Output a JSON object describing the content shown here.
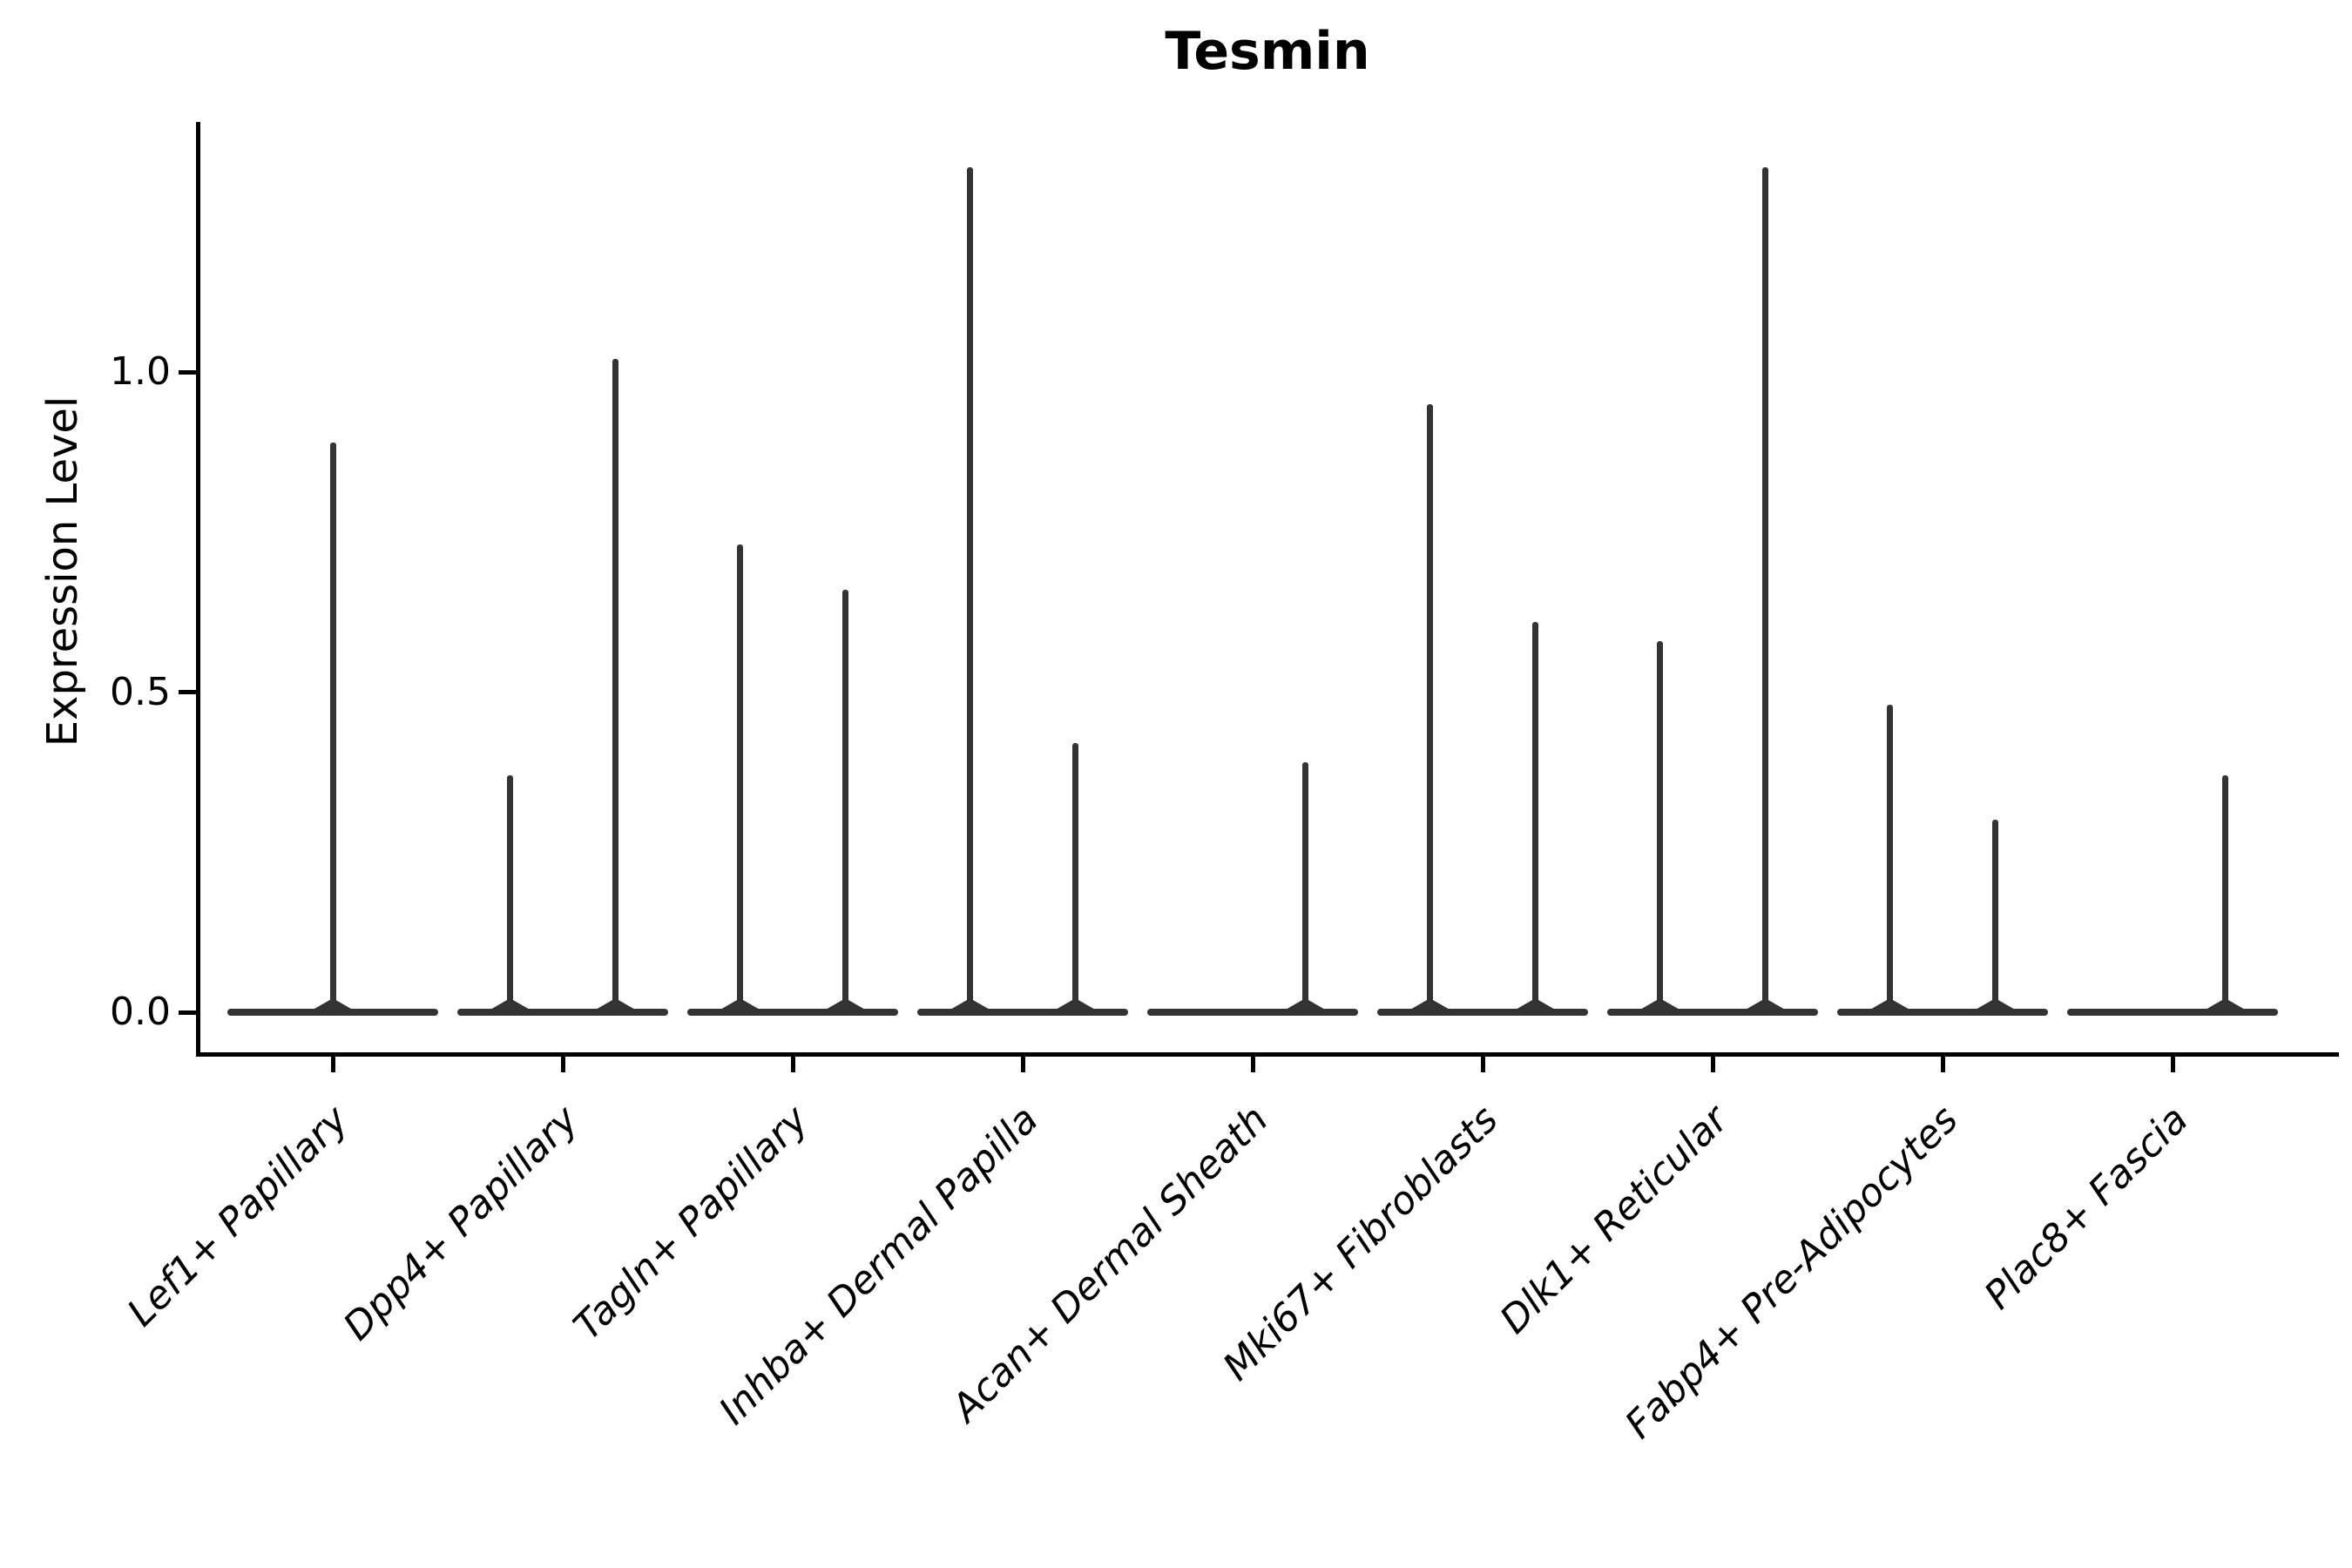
{
  "title": "Tesmin",
  "axes": {
    "ylabel": "Expression Level",
    "yticks": [
      "0.0",
      "0.5",
      "1.0"
    ],
    "ytick_values": [
      0.0,
      0.5,
      1.0
    ]
  },
  "chart_data": {
    "type": "violin",
    "title": "Tesmin",
    "xlabel": "",
    "ylabel": "Expression Level",
    "ylim": [
      -0.07,
      1.39
    ],
    "grid": false,
    "legend": "none",
    "categories": [
      "Lef1+ Papillary",
      "Dpp4+ Papillary",
      "Tagln+ Papillary",
      "Inhba+ Dermal Papilla",
      "Acan+ Dermal Sheath",
      "Mki67+ Fibroblasts",
      "Dlk1+ Reticular",
      "Fabp4+ Pre-Adipocytes",
      "Plac8+ Fascia"
    ],
    "violin_color": "#333333",
    "body_value": 0.0,
    "violins": [
      {
        "category": "Lef1+ Papillary",
        "position": "center",
        "spike_max": 0.89
      },
      {
        "category": "Dpp4+ Papillary",
        "position": "left",
        "spike_max": 0.37
      },
      {
        "category": "Dpp4+ Papillary",
        "position": "right",
        "spike_max": 1.02
      },
      {
        "category": "Tagln+ Papillary",
        "position": "left",
        "spike_max": 0.73
      },
      {
        "category": "Tagln+ Papillary",
        "position": "right",
        "spike_max": 0.66
      },
      {
        "category": "Inhba+ Dermal Papilla",
        "position": "left",
        "spike_max": 1.32
      },
      {
        "category": "Inhba+ Dermal Papilla",
        "position": "right",
        "spike_max": 0.42
      },
      {
        "category": "Acan+ Dermal Sheath",
        "position": "right",
        "spike_max": 0.39
      },
      {
        "category": "Mki67+ Fibroblasts",
        "position": "left",
        "spike_max": 0.95
      },
      {
        "category": "Mki67+ Fibroblasts",
        "position": "right",
        "spike_max": 0.61
      },
      {
        "category": "Dlk1+ Reticular",
        "position": "left",
        "spike_max": 0.58
      },
      {
        "category": "Dlk1+ Reticular",
        "position": "right",
        "spike_max": 1.32
      },
      {
        "category": "Fabp4+ Pre-Adipocytes",
        "position": "left",
        "spike_max": 0.48
      },
      {
        "category": "Fabp4+ Pre-Adipocytes",
        "position": "right",
        "spike_max": 0.3
      },
      {
        "category": "Plac8+ Fascia",
        "position": "right",
        "spike_max": 0.37
      }
    ]
  }
}
